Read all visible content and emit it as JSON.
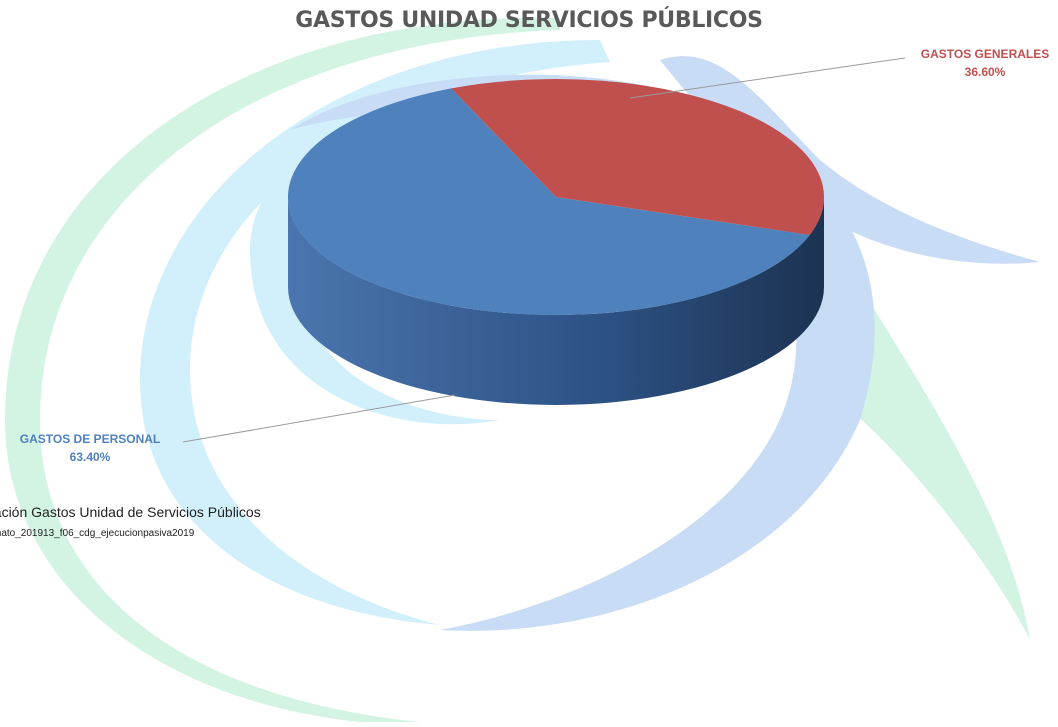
{
  "chart_data": {
    "type": "pie",
    "title": "GASTOS UNIDAD SERVICIOS PÚBLICOS",
    "slices": [
      {
        "label": "GASTOS DE PERSONAL",
        "value": 63.4,
        "value_label": "63.40%",
        "color": "#4F81BD"
      },
      {
        "label": "GASTOS GENERALES",
        "value": 36.6,
        "value_label": "36.60%",
        "color": "#C0504D"
      }
    ],
    "style": "3d-perspective"
  },
  "caption": {
    "line1": "pación Gastos Unidad de Servicios Públicos",
    "line2": "mato_201913_f06_cdg_ejecucionpasiva2019"
  },
  "colors": {
    "watermark_blue": "#c8dcf6",
    "watermark_cyan": "#d2f0fb",
    "watermark_green": "#d3f4e2"
  }
}
